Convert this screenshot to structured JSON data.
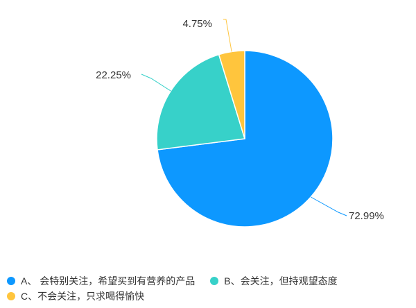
{
  "chart_data": {
    "type": "pie",
    "title": "",
    "start_angle_deg": 90,
    "direction": "clockwise",
    "slices": [
      {
        "label": "A、  会特别关注，希望买到有营养的产品",
        "value": 72.99,
        "display": "72.99%",
        "color": "#0d98ff"
      },
      {
        "label": "B、会关注，但持观望态度",
        "value": 22.25,
        "display": "22.25%",
        "color": "#37d1c9"
      },
      {
        "label": "C、不会关注，只求喝得愉快",
        "value": 4.75,
        "display": "4.75%",
        "color": "#ffc53d"
      }
    ],
    "legend_position": "bottom-left",
    "label_line_color": "matches slice"
  }
}
